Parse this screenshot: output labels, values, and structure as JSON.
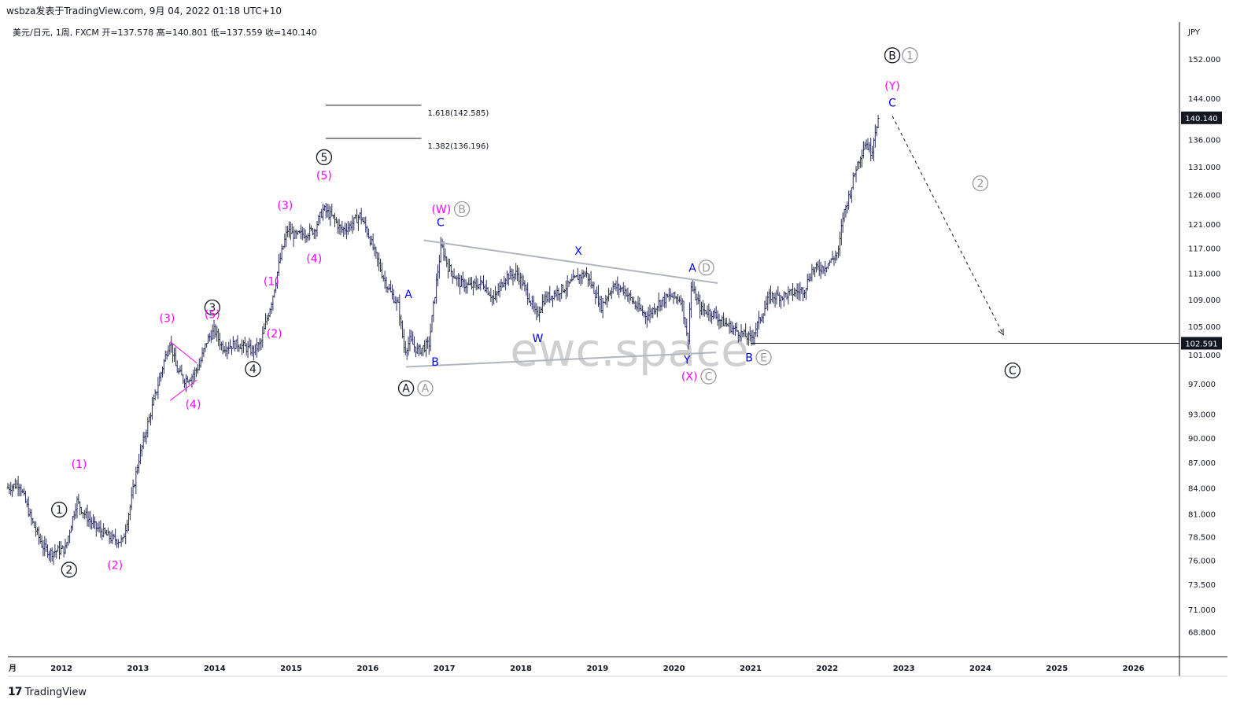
{
  "header": {
    "publish_line": "wsbza发表于TradingView.com,  9月 04, 2022 01:18 UTC+10",
    "symbol_line": "美元/日元, 1周, FXCM  开=137.578  高=140.801  低=137.559  收=140.140"
  },
  "footer": {
    "brand": "TradingView",
    "brand_mark": "17"
  },
  "watermark": "ewc.space",
  "colors": {
    "labels_magenta": "#ff00ff",
    "labels_blue": "#0000ff",
    "labels_gray": "#9a9a9a",
    "lines": "#b2b5be",
    "price_box": "#131722"
  },
  "chart_data": {
    "type": "candlestick-elliott-wave",
    "symbol": "美元/日元",
    "interval": "1周",
    "source": "FXCM",
    "ohlc_last": {
      "open": 137.578,
      "high": 140.801,
      "low": 137.559,
      "close": 140.14
    },
    "y_unit": "JPY",
    "y_ticks": [
      152.0,
      144.0,
      136.0,
      131.0,
      126.0,
      121.0,
      117.0,
      113.0,
      109.0,
      105.0,
      101.0,
      97.0,
      93.0,
      90.0,
      87.0,
      84.0,
      81.0,
      78.5,
      76.0,
      73.5,
      71.0,
      68.8
    ],
    "y_tick_labels": [
      "152.000",
      "144.000",
      "136.000",
      "131.000",
      "126.000",
      "121.000",
      "117.000",
      "113.000",
      "109.000",
      "105.000",
      "101.000",
      "97.000",
      "93.000",
      "90.000",
      "87.000",
      "84.000",
      "81.000",
      "78.500",
      "76.000",
      "73.500",
      "71.000",
      "68.800"
    ],
    "ylim": [
      66.5,
      160
    ],
    "x_ticks": [
      "月",
      "2012",
      "2013",
      "2014",
      "2015",
      "2016",
      "2017",
      "2018",
      "2019",
      "2020",
      "2021",
      "2022",
      "2023",
      "2024",
      "2025",
      "2026"
    ],
    "x_tick_years": [
      2011.5,
      2012,
      2013,
      2014,
      2015,
      2016,
      2017,
      2018,
      2019,
      2020,
      2021,
      2022,
      2023,
      2024,
      2025,
      2026
    ],
    "xlim": [
      2011.3,
      2026.6
    ],
    "price_path": [
      [
        2011.3,
        84.0
      ],
      [
        2011.45,
        84.5
      ],
      [
        2011.6,
        80.5
      ],
      [
        2011.75,
        77.5
      ],
      [
        2011.85,
        76.8
      ],
      [
        2011.95,
        77.0
      ],
      [
        2012.05,
        77.2
      ],
      [
        2012.2,
        82.5
      ],
      [
        2012.3,
        81.0
      ],
      [
        2012.45,
        79.5
      ],
      [
        2012.65,
        78.3
      ],
      [
        2012.8,
        78.0
      ],
      [
        2012.9,
        82.0
      ],
      [
        2013.0,
        87.0
      ],
      [
        2013.2,
        94.5
      ],
      [
        2013.35,
        100.5
      ],
      [
        2013.42,
        103.0
      ],
      [
        2013.5,
        99.0
      ],
      [
        2013.6,
        97.5
      ],
      [
        2013.7,
        98.0
      ],
      [
        2013.8,
        99.5
      ],
      [
        2013.9,
        103.0
      ],
      [
        2014.0,
        104.5
      ],
      [
        2014.1,
        102.0
      ],
      [
        2014.3,
        102.5
      ],
      [
        2014.5,
        101.5
      ],
      [
        2014.6,
        102.5
      ],
      [
        2014.75,
        109.0
      ],
      [
        2014.85,
        115.0
      ],
      [
        2014.95,
        120.0
      ],
      [
        2015.05,
        119.0
      ],
      [
        2015.2,
        119.5
      ],
      [
        2015.3,
        120.0
      ],
      [
        2015.42,
        123.5
      ],
      [
        2015.55,
        122.0
      ],
      [
        2015.65,
        120.0
      ],
      [
        2015.75,
        120.5
      ],
      [
        2015.9,
        122.5
      ],
      [
        2016.0,
        119.5
      ],
      [
        2016.1,
        116.0
      ],
      [
        2016.2,
        112.5
      ],
      [
        2016.3,
        110.0
      ],
      [
        2016.4,
        108.0
      ],
      [
        2016.48,
        101.5
      ],
      [
        2016.55,
        103.0
      ],
      [
        2016.65,
        101.5
      ],
      [
        2016.8,
        102.5
      ],
      [
        2016.9,
        112.0
      ],
      [
        2016.96,
        117.5
      ],
      [
        2017.05,
        114.0
      ],
      [
        2017.2,
        111.5
      ],
      [
        2017.35,
        111.0
      ],
      [
        2017.5,
        111.5
      ],
      [
        2017.65,
        109.0
      ],
      [
        2017.8,
        112.5
      ],
      [
        2017.95,
        113.0
      ],
      [
        2018.1,
        109.5
      ],
      [
        2018.2,
        106.5
      ],
      [
        2018.3,
        109.0
      ],
      [
        2018.45,
        110.0
      ],
      [
        2018.6,
        111.0
      ],
      [
        2018.75,
        112.5
      ],
      [
        2018.85,
        113.0
      ],
      [
        2018.95,
        110.5
      ],
      [
        2019.05,
        108.0
      ],
      [
        2019.2,
        111.0
      ],
      [
        2019.35,
        110.5
      ],
      [
        2019.5,
        108.0
      ],
      [
        2019.65,
        106.5
      ],
      [
        2019.8,
        108.5
      ],
      [
        2019.95,
        109.5
      ],
      [
        2020.1,
        109.0
      ],
      [
        2020.18,
        102.5
      ],
      [
        2020.22,
        111.0
      ],
      [
        2020.35,
        107.5
      ],
      [
        2020.5,
        107.0
      ],
      [
        2020.65,
        105.5
      ],
      [
        2020.8,
        104.5
      ],
      [
        2020.95,
        103.5
      ],
      [
        2021.0,
        103.2
      ],
      [
        2021.1,
        105.5
      ],
      [
        2021.25,
        109.5
      ],
      [
        2021.4,
        109.5
      ],
      [
        2021.55,
        110.0
      ],
      [
        2021.7,
        110.5
      ],
      [
        2021.8,
        113.5
      ],
      [
        2021.95,
        114.0
      ],
      [
        2022.05,
        115.0
      ],
      [
        2022.15,
        116.5
      ],
      [
        2022.2,
        122.0
      ],
      [
        2022.3,
        126.5
      ],
      [
        2022.38,
        131.0
      ],
      [
        2022.5,
        135.5
      ],
      [
        2022.58,
        133.5
      ],
      [
        2022.62,
        137.5
      ],
      [
        2022.67,
        140.1
      ]
    ],
    "drawn_levels": [
      {
        "kind": "fib",
        "label": "1.618(142.585)",
        "y": 142.585,
        "x1": 2015.45,
        "x2": 2016.7
      },
      {
        "kind": "fib",
        "label": "1.382(136.196)",
        "y": 136.196,
        "x1": 2015.45,
        "x2": 2016.7
      },
      {
        "kind": "horizontal",
        "label": "102.591",
        "y": 102.591,
        "x1": 2021.0,
        "x2": 2026.6
      }
    ],
    "trendlines": [
      {
        "from": [
          2016.73,
          118.3
        ],
        "to": [
          2020.57,
          111.5
        ]
      },
      {
        "from": [
          2016.5,
          99.3
        ],
        "to": [
          2020.55,
          101.3
        ]
      }
    ],
    "projection": {
      "from": [
        2022.85,
        140.5
      ],
      "to": [
        2024.3,
        103.8
      ]
    },
    "price_labels": [
      {
        "text": "140.140",
        "y": 140.14,
        "style": "dark"
      },
      {
        "text": "102.591",
        "y": 102.591,
        "style": "dark"
      }
    ],
    "wave_labels": [
      {
        "text": "1",
        "x": 2011.97,
        "y": 81.5,
        "style": "circle-black"
      },
      {
        "text": "2",
        "x": 2012.1,
        "y": 75.0,
        "style": "circle-black"
      },
      {
        "text": "(1)",
        "x": 2012.23,
        "y": 86.8,
        "style": "magenta"
      },
      {
        "text": "(2)",
        "x": 2012.7,
        "y": 75.5,
        "style": "magenta"
      },
      {
        "text": "(3)",
        "x": 2013.38,
        "y": 106.2,
        "style": "magenta"
      },
      {
        "text": "(4)",
        "x": 2013.72,
        "y": 94.3,
        "style": "magenta"
      },
      {
        "text": "3",
        "x": 2013.97,
        "y": 107.8,
        "style": "circle-black"
      },
      {
        "text": "(5)",
        "x": 2013.97,
        "y": 106.8,
        "style": "magenta"
      },
      {
        "text": "4",
        "x": 2014.5,
        "y": 99.0,
        "style": "circle-black"
      },
      {
        "text": "(1)",
        "x": 2014.74,
        "y": 111.8,
        "style": "magenta"
      },
      {
        "text": "(2)",
        "x": 2014.78,
        "y": 104.0,
        "style": "magenta"
      },
      {
        "text": "(3)",
        "x": 2014.92,
        "y": 124.2,
        "style": "magenta"
      },
      {
        "text": "(4)",
        "x": 2015.3,
        "y": 115.4,
        "style": "magenta"
      },
      {
        "text": "5",
        "x": 2015.43,
        "y": 132.7,
        "style": "circle-black"
      },
      {
        "text": "(5)",
        "x": 2015.43,
        "y": 129.4,
        "style": "magenta"
      },
      {
        "text": "A",
        "x": 2016.53,
        "y": 109.8,
        "style": "blue"
      },
      {
        "text": "B",
        "x": 2016.88,
        "y": 100.0,
        "style": "blue"
      },
      {
        "text": "A",
        "x": 2016.5,
        "y": 96.4,
        "style": "circle-black"
      },
      {
        "text": "A",
        "x": 2016.75,
        "y": 96.4,
        "style": "circle-gray"
      },
      {
        "text": "(W)",
        "x": 2016.96,
        "y": 123.5,
        "style": "magenta"
      },
      {
        "text": "B",
        "x": 2017.23,
        "y": 123.5,
        "style": "circle-gray"
      },
      {
        "text": "C",
        "x": 2016.95,
        "y": 121.3,
        "style": "blue"
      },
      {
        "text": "W",
        "x": 2018.22,
        "y": 103.3,
        "style": "blue"
      },
      {
        "text": "X",
        "x": 2018.75,
        "y": 116.6,
        "style": "blue"
      },
      {
        "text": "A",
        "x": 2020.24,
        "y": 113.9,
        "style": "blue"
      },
      {
        "text": "D",
        "x": 2020.42,
        "y": 113.9,
        "style": "circle-gray"
      },
      {
        "text": "Y",
        "x": 2020.17,
        "y": 100.3,
        "style": "blue"
      },
      {
        "text": "(X)",
        "x": 2020.2,
        "y": 98.0,
        "style": "magenta"
      },
      {
        "text": "C",
        "x": 2020.45,
        "y": 98.0,
        "style": "circle-gray"
      },
      {
        "text": "B",
        "x": 2020.98,
        "y": 100.6,
        "style": "blue"
      },
      {
        "text": "E",
        "x": 2021.17,
        "y": 100.6,
        "style": "circle-gray"
      },
      {
        "text": "B",
        "x": 2022.85,
        "y": 152.8,
        "style": "circle-black"
      },
      {
        "text": "1",
        "x": 2023.08,
        "y": 152.8,
        "style": "circle-gray"
      },
      {
        "text": "(Y)",
        "x": 2022.85,
        "y": 146.5,
        "style": "magenta"
      },
      {
        "text": "C",
        "x": 2022.85,
        "y": 143.1,
        "style": "blue"
      },
      {
        "text": "2",
        "x": 2024.0,
        "y": 128.0,
        "style": "circle-gray"
      },
      {
        "text": "C",
        "x": 2024.42,
        "y": 98.8,
        "style": "circle-black"
      }
    ]
  }
}
